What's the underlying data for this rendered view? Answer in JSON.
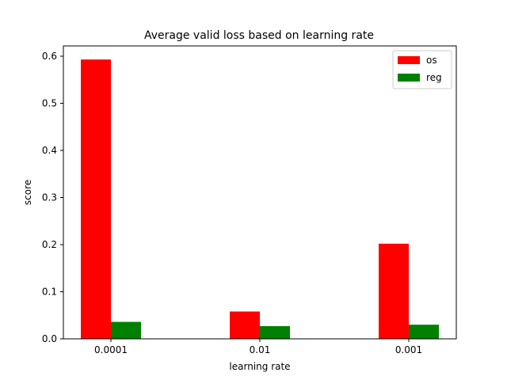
{
  "chart_data": {
    "type": "bar",
    "title": "Average valid loss based on learning rate",
    "xlabel": "learning rate",
    "ylabel": "score",
    "categories": [
      "0.0001",
      "0.01",
      "0.001"
    ],
    "series": [
      {
        "name": "os",
        "color": "#ff0000",
        "values": [
          0.593,
          0.058,
          0.202
        ]
      },
      {
        "name": "reg",
        "color": "#008000",
        "values": [
          0.036,
          0.027,
          0.03
        ]
      }
    ],
    "ylim": [
      0,
      0.6
    ],
    "yticks": [
      "0.0",
      "0.1",
      "0.2",
      "0.3",
      "0.4",
      "0.5",
      "0.6"
    ],
    "legend_position": "top-right",
    "grid": false
  }
}
